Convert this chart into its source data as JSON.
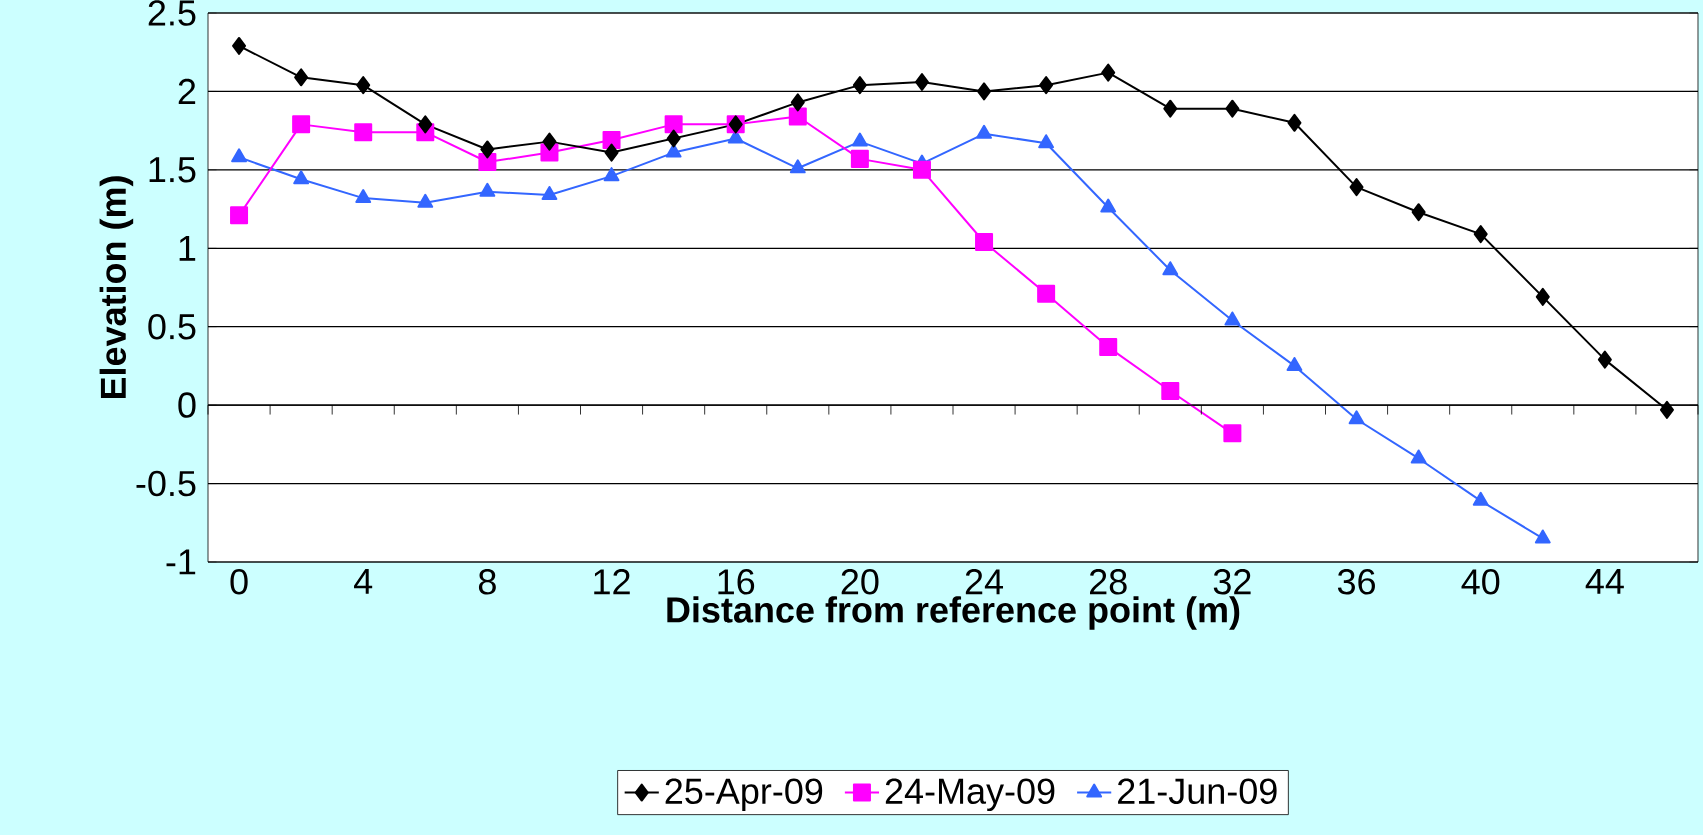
{
  "chart_data": {
    "type": "line",
    "xlabel": "Distance from reference point (m)",
    "ylabel": "Elevation (m)",
    "categories": [
      "0",
      null,
      "4",
      null,
      "8",
      null,
      "12",
      null,
      "16",
      null,
      "20",
      null,
      "24",
      null,
      "28",
      null,
      "32",
      null,
      "36",
      null,
      "40",
      null,
      "44",
      null
    ],
    "ylim": [
      -1,
      2.5
    ],
    "yticks": [
      -1,
      -0.5,
      0,
      0.5,
      1,
      1.5,
      2,
      2.5
    ],
    "grid": "y",
    "legend": "bottom",
    "series": [
      {
        "name": "25-Apr-09",
        "color": "#000000",
        "marker": "diamond",
        "values": [
          2.29,
          2.09,
          2.04,
          1.79,
          1.63,
          1.68,
          1.61,
          1.7,
          1.79,
          1.93,
          2.04,
          2.06,
          2.0,
          2.04,
          2.12,
          1.89,
          1.89,
          1.8,
          1.39,
          1.23,
          1.09,
          0.69,
          0.29,
          -0.03
        ]
      },
      {
        "name": "24-May-09",
        "color": "#ff00ff",
        "marker": "square",
        "values": [
          1.21,
          1.79,
          1.74,
          1.74,
          1.55,
          1.61,
          1.69,
          1.79,
          1.79,
          1.84,
          1.57,
          1.5,
          1.04,
          0.71,
          0.37,
          0.09,
          -0.18,
          null,
          null,
          null,
          null,
          null,
          null,
          null
        ]
      },
      {
        "name": "21-Jun-09",
        "color": "#3366ff",
        "marker": "triangle",
        "values": [
          1.58,
          1.44,
          1.32,
          1.29,
          1.36,
          1.34,
          1.46,
          1.61,
          1.7,
          1.51,
          1.68,
          1.54,
          1.73,
          1.67,
          1.26,
          0.86,
          0.54,
          0.25,
          -0.09,
          -0.34,
          -0.61,
          -0.85,
          null,
          null
        ]
      }
    ]
  }
}
